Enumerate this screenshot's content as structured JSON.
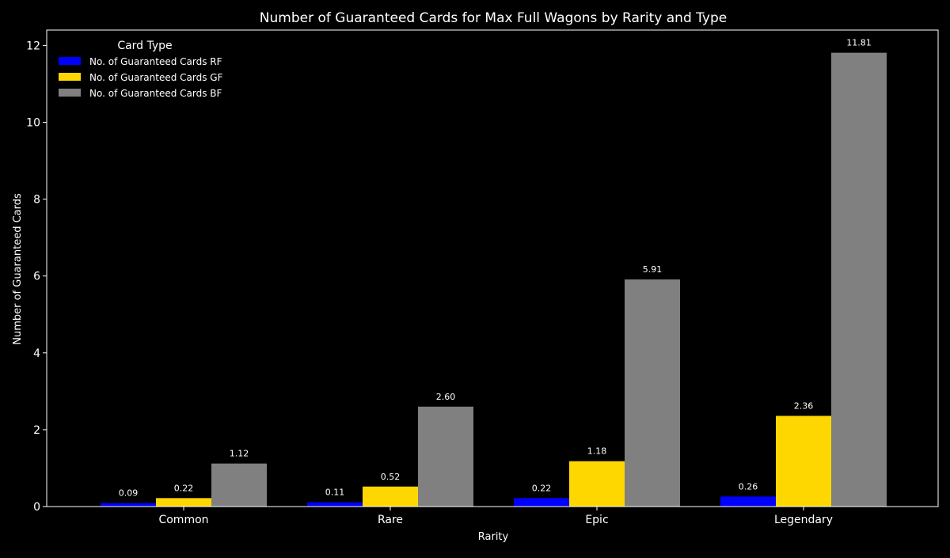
{
  "chart_data": {
    "type": "bar",
    "title": "Number of Guaranteed Cards for Max Full Wagons by Rarity and Type",
    "xlabel": "Rarity",
    "ylabel": "Number of Guaranteed Cards",
    "categories": [
      "Common",
      "Rare",
      "Epic",
      "Legendary"
    ],
    "series": [
      {
        "name": "No. of Guaranteed Cards RF",
        "color": "#0000ff",
        "values": [
          0.09,
          0.11,
          0.22,
          0.26
        ],
        "labels": [
          "0.09",
          "0.11",
          "0.22",
          "0.26"
        ]
      },
      {
        "name": "No. of Guaranteed Cards GF",
        "color": "#ffd700",
        "values": [
          0.22,
          0.52,
          1.18,
          2.36
        ],
        "labels": [
          "0.22",
          "0.52",
          "1.18",
          "2.36"
        ]
      },
      {
        "name": "No. of Guaranteed Cards BF",
        "color": "#808080",
        "values": [
          1.12,
          2.6,
          5.91,
          11.81
        ],
        "labels": [
          "1.12",
          "2.60",
          "5.91",
          "11.81"
        ]
      }
    ],
    "ylim": [
      0,
      12.4
    ],
    "yticks": [
      0,
      2,
      4,
      6,
      8,
      10,
      12
    ],
    "ytick_labels": [
      "0",
      "2",
      "4",
      "6",
      "8",
      "10",
      "12"
    ],
    "grid": false,
    "legend": {
      "title": "Card Type",
      "placement": "top-left"
    },
    "background_color": "#000000",
    "axis_color": "#ffffff"
  }
}
